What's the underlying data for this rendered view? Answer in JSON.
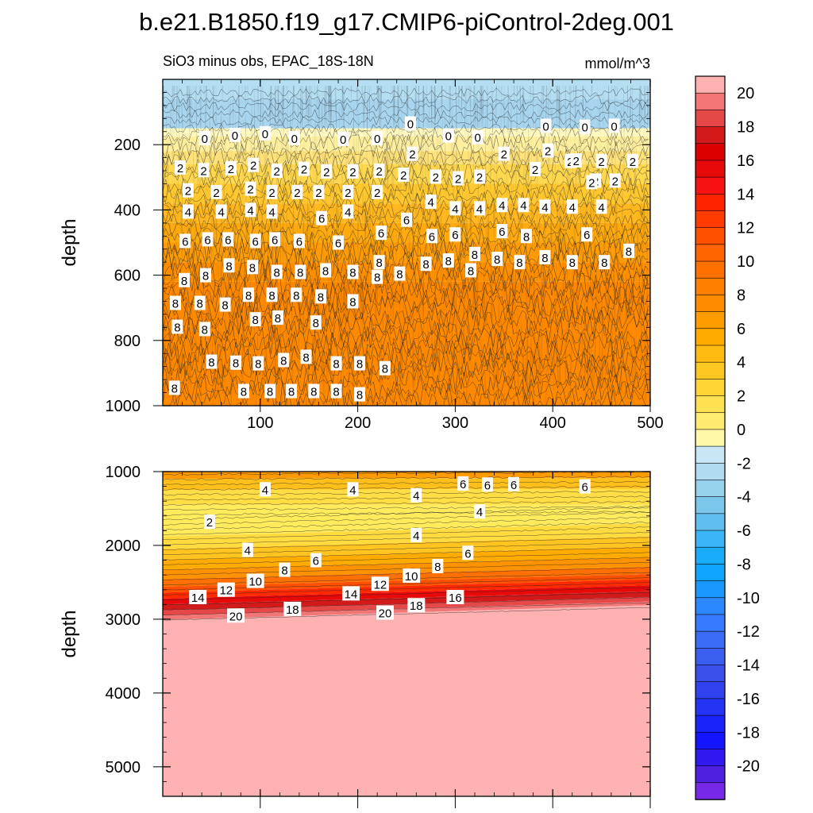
{
  "figure": {
    "title": "b.e21.B1850.f19_g17.CMIP6-piControl-2deg.001",
    "subtitle_left": "SiO3 minus obs, EPAC_18S-18N",
    "subtitle_right": "mmol/m^3"
  },
  "chart_data": [
    {
      "type": "heatmap",
      "name": "upper-panel",
      "ylabel": "depth",
      "xlim": [
        0,
        500
      ],
      "ylim": [
        0,
        1000
      ],
      "y_inverted": true,
      "x_ticks": [
        100,
        200,
        300,
        400,
        500
      ],
      "x_tick_labels": [
        "100",
        "200",
        "300",
        "400",
        "500"
      ],
      "y_ticks": [
        200,
        400,
        600,
        800,
        1000
      ],
      "y_tick_labels": [
        "200",
        "400",
        "600",
        "800",
        "1000"
      ],
      "contour_labels": [
        {
          "x": 43,
          "y": 180,
          "text": "0"
        },
        {
          "x": 74,
          "y": 170,
          "text": "0"
        },
        {
          "x": 105,
          "y": 165,
          "text": "0"
        },
        {
          "x": 135,
          "y": 180,
          "text": "0"
        },
        {
          "x": 185,
          "y": 182,
          "text": "0"
        },
        {
          "x": 220,
          "y": 180,
          "text": "0"
        },
        {
          "x": 254,
          "y": 135,
          "text": "0"
        },
        {
          "x": 293,
          "y": 172,
          "text": "0"
        },
        {
          "x": 323,
          "y": 177,
          "text": "0"
        },
        {
          "x": 393,
          "y": 142,
          "text": "0"
        },
        {
          "x": 433,
          "y": 145,
          "text": "0"
        },
        {
          "x": 463,
          "y": 142,
          "text": "0"
        },
        {
          "x": 18,
          "y": 270,
          "text": "2"
        },
        {
          "x": 42,
          "y": 278,
          "text": "2"
        },
        {
          "x": 70,
          "y": 272,
          "text": "2"
        },
        {
          "x": 93,
          "y": 262,
          "text": "2"
        },
        {
          "x": 117,
          "y": 280,
          "text": "2"
        },
        {
          "x": 145,
          "y": 274,
          "text": "2"
        },
        {
          "x": 168,
          "y": 282,
          "text": "2"
        },
        {
          "x": 195,
          "y": 282,
          "text": "2"
        },
        {
          "x": 222,
          "y": 280,
          "text": "2"
        },
        {
          "x": 247,
          "y": 292,
          "text": "2"
        },
        {
          "x": 256,
          "y": 228,
          "text": "2"
        },
        {
          "x": 280,
          "y": 298,
          "text": "2"
        },
        {
          "x": 303,
          "y": 303,
          "text": "2"
        },
        {
          "x": 325,
          "y": 298,
          "text": "2"
        },
        {
          "x": 350,
          "y": 228,
          "text": "2"
        },
        {
          "x": 382,
          "y": 275,
          "text": "2"
        },
        {
          "x": 395,
          "y": 218,
          "text": "2"
        },
        {
          "x": 418,
          "y": 250,
          "text": "2"
        },
        {
          "x": 424,
          "y": 248,
          "text": "2"
        },
        {
          "x": 444,
          "y": 310,
          "text": "2"
        },
        {
          "x": 450,
          "y": 250,
          "text": "2"
        },
        {
          "x": 464,
          "y": 310,
          "text": "2"
        },
        {
          "x": 482,
          "y": 250,
          "text": "2"
        },
        {
          "x": 440,
          "y": 315,
          "text": "2"
        },
        {
          "x": 26,
          "y": 340,
          "text": "2"
        },
        {
          "x": 55,
          "y": 345,
          "text": "2"
        },
        {
          "x": 90,
          "y": 335,
          "text": "2"
        },
        {
          "x": 112,
          "y": 345,
          "text": "2"
        },
        {
          "x": 138,
          "y": 345,
          "text": "2"
        },
        {
          "x": 160,
          "y": 345,
          "text": "2"
        },
        {
          "x": 190,
          "y": 345,
          "text": "2"
        },
        {
          "x": 220,
          "y": 345,
          "text": "2"
        },
        {
          "x": 26,
          "y": 405,
          "text": "4"
        },
        {
          "x": 60,
          "y": 405,
          "text": "4"
        },
        {
          "x": 90,
          "y": 400,
          "text": "4"
        },
        {
          "x": 112,
          "y": 405,
          "text": "4"
        },
        {
          "x": 163,
          "y": 425,
          "text": "6"
        },
        {
          "x": 190,
          "y": 405,
          "text": "4"
        },
        {
          "x": 275,
          "y": 375,
          "text": "4"
        },
        {
          "x": 300,
          "y": 395,
          "text": "4"
        },
        {
          "x": 325,
          "y": 395,
          "text": "4"
        },
        {
          "x": 348,
          "y": 385,
          "text": "4"
        },
        {
          "x": 370,
          "y": 385,
          "text": "4"
        },
        {
          "x": 392,
          "y": 390,
          "text": "4"
        },
        {
          "x": 420,
          "y": 390,
          "text": "4"
        },
        {
          "x": 450,
          "y": 390,
          "text": "4"
        },
        {
          "x": 23,
          "y": 495,
          "text": "6"
        },
        {
          "x": 46,
          "y": 490,
          "text": "6"
        },
        {
          "x": 67,
          "y": 490,
          "text": "6"
        },
        {
          "x": 95,
          "y": 495,
          "text": "6"
        },
        {
          "x": 115,
          "y": 490,
          "text": "6"
        },
        {
          "x": 140,
          "y": 495,
          "text": "6"
        },
        {
          "x": 180,
          "y": 500,
          "text": "6"
        },
        {
          "x": 224,
          "y": 470,
          "text": "6"
        },
        {
          "x": 250,
          "y": 430,
          "text": "6"
        },
        {
          "x": 276,
          "y": 480,
          "text": "6"
        },
        {
          "x": 300,
          "y": 475,
          "text": "6"
        },
        {
          "x": 348,
          "y": 465,
          "text": "6"
        },
        {
          "x": 373,
          "y": 480,
          "text": "8"
        },
        {
          "x": 435,
          "y": 475,
          "text": "6"
        },
        {
          "x": 478,
          "y": 525,
          "text": "8"
        },
        {
          "x": 22,
          "y": 615,
          "text": "8"
        },
        {
          "x": 44,
          "y": 600,
          "text": "8"
        },
        {
          "x": 68,
          "y": 570,
          "text": "8"
        },
        {
          "x": 92,
          "y": 575,
          "text": "8"
        },
        {
          "x": 117,
          "y": 590,
          "text": "8"
        },
        {
          "x": 141,
          "y": 590,
          "text": "8"
        },
        {
          "x": 167,
          "y": 585,
          "text": "8"
        },
        {
          "x": 195,
          "y": 590,
          "text": "8"
        },
        {
          "x": 220,
          "y": 605,
          "text": "8"
        },
        {
          "x": 222,
          "y": 560,
          "text": "8"
        },
        {
          "x": 243,
          "y": 595,
          "text": "8"
        },
        {
          "x": 270,
          "y": 565,
          "text": "8"
        },
        {
          "x": 293,
          "y": 555,
          "text": "8"
        },
        {
          "x": 316,
          "y": 585,
          "text": "8"
        },
        {
          "x": 320,
          "y": 535,
          "text": "8"
        },
        {
          "x": 343,
          "y": 550,
          "text": "8"
        },
        {
          "x": 366,
          "y": 560,
          "text": "8"
        },
        {
          "x": 392,
          "y": 545,
          "text": "8"
        },
        {
          "x": 420,
          "y": 560,
          "text": "8"
        },
        {
          "x": 453,
          "y": 560,
          "text": "8"
        },
        {
          "x": 13,
          "y": 685,
          "text": "8"
        },
        {
          "x": 38,
          "y": 685,
          "text": "8"
        },
        {
          "x": 64,
          "y": 690,
          "text": "8"
        },
        {
          "x": 88,
          "y": 660,
          "text": "8"
        },
        {
          "x": 112,
          "y": 660,
          "text": "8"
        },
        {
          "x": 137,
          "y": 660,
          "text": "8"
        },
        {
          "x": 162,
          "y": 665,
          "text": "8"
        },
        {
          "x": 195,
          "y": 680,
          "text": "8"
        },
        {
          "x": 15,
          "y": 758,
          "text": "8"
        },
        {
          "x": 43,
          "y": 765,
          "text": "8"
        },
        {
          "x": 95,
          "y": 735,
          "text": "8"
        },
        {
          "x": 118,
          "y": 730,
          "text": "8"
        },
        {
          "x": 157,
          "y": 745,
          "text": "8"
        },
        {
          "x": 50,
          "y": 865,
          "text": "8"
        },
        {
          "x": 75,
          "y": 868,
          "text": "8"
        },
        {
          "x": 98,
          "y": 870,
          "text": "8"
        },
        {
          "x": 124,
          "y": 860,
          "text": "8"
        },
        {
          "x": 147,
          "y": 850,
          "text": "8"
        },
        {
          "x": 178,
          "y": 870,
          "text": "8"
        },
        {
          "x": 202,
          "y": 870,
          "text": "8"
        },
        {
          "x": 228,
          "y": 885,
          "text": "8"
        },
        {
          "x": 12,
          "y": 945,
          "text": "8"
        },
        {
          "x": 83,
          "y": 955,
          "text": "8"
        },
        {
          "x": 110,
          "y": 955,
          "text": "8"
        },
        {
          "x": 132,
          "y": 955,
          "text": "8"
        },
        {
          "x": 155,
          "y": 955,
          "text": "8"
        },
        {
          "x": 178,
          "y": 955,
          "text": "8"
        },
        {
          "x": 202,
          "y": 965,
          "text": "8"
        }
      ]
    },
    {
      "type": "heatmap",
      "name": "lower-panel",
      "ylabel": "depth",
      "xlim": [
        0,
        500
      ],
      "ylim": [
        1000,
        5400
      ],
      "y_inverted": true,
      "x_ticks": [
        100,
        200,
        300,
        400,
        500
      ],
      "y_ticks": [
        1000,
        2000,
        3000,
        4000,
        5000
      ],
      "y_tick_labels": [
        "1000",
        "2000",
        "3000",
        "4000",
        "5000"
      ],
      "contour_labels": [
        {
          "x": 105,
          "y": 1240,
          "text": "4"
        },
        {
          "x": 195,
          "y": 1240,
          "text": "4"
        },
        {
          "x": 260,
          "y": 1320,
          "text": "4"
        },
        {
          "x": 308,
          "y": 1160,
          "text": "6"
        },
        {
          "x": 333,
          "y": 1175,
          "text": "6"
        },
        {
          "x": 360,
          "y": 1170,
          "text": "6"
        },
        {
          "x": 433,
          "y": 1200,
          "text": "6"
        },
        {
          "x": 325,
          "y": 1540,
          "text": "4"
        },
        {
          "x": 48,
          "y": 1680,
          "text": "2"
        },
        {
          "x": 260,
          "y": 1860,
          "text": "4"
        },
        {
          "x": 87,
          "y": 2060,
          "text": "4"
        },
        {
          "x": 157,
          "y": 2200,
          "text": "6"
        },
        {
          "x": 125,
          "y": 2330,
          "text": "8"
        },
        {
          "x": 282,
          "y": 2280,
          "text": "8"
        },
        {
          "x": 313,
          "y": 2100,
          "text": "6"
        },
        {
          "x": 95,
          "y": 2480,
          "text": "10"
        },
        {
          "x": 255,
          "y": 2410,
          "text": "10"
        },
        {
          "x": 65,
          "y": 2600,
          "text": "12"
        },
        {
          "x": 223,
          "y": 2520,
          "text": "12"
        },
        {
          "x": 36,
          "y": 2700,
          "text": "14"
        },
        {
          "x": 193,
          "y": 2650,
          "text": "14"
        },
        {
          "x": 300,
          "y": 2700,
          "text": "16"
        },
        {
          "x": 75,
          "y": 2950,
          "text": "20"
        },
        {
          "x": 133,
          "y": 2860,
          "text": "18"
        },
        {
          "x": 228,
          "y": 2910,
          "text": "20"
        },
        {
          "x": 260,
          "y": 2810,
          "text": "18"
        }
      ]
    },
    {
      "type": "colorbar",
      "name": "colorbar",
      "tick_labels": [
        "20",
        "18",
        "16",
        "14",
        "12",
        "10",
        "8",
        "6",
        "4",
        "2",
        "0",
        "-2",
        "-4",
        "-6",
        "-8",
        "-10",
        "-12",
        "-14",
        "-16",
        "-18",
        "-20"
      ],
      "levels": [
        21,
        20,
        19,
        18,
        17,
        16,
        15,
        14,
        13,
        12,
        11,
        10,
        9,
        8,
        7,
        6,
        5,
        4,
        3,
        2,
        1,
        0,
        -1,
        -2,
        -3,
        -4,
        -5,
        -6,
        -7,
        -8,
        -9,
        -10,
        -11,
        -12,
        -13,
        -14,
        -15,
        -16,
        -17,
        -18,
        -19,
        -20,
        -21
      ],
      "colors": [
        "#feb1b1",
        "#f37676",
        "#e64848",
        "#d21a1a",
        "#dc0000",
        "#e80a0a",
        "#f71111",
        "#ff2400",
        "#ff3c00",
        "#ff5000",
        "#ff6400",
        "#ff7000",
        "#ff8000",
        "#ff8c00",
        "#ff9c00",
        "#ffab00",
        "#ffbb10",
        "#ffc820",
        "#ffd535",
        "#ffe050",
        "#ffeb70",
        "#fff8a8",
        "#c8e6f5",
        "#afdcf0",
        "#96d2ee",
        "#7cc8ec",
        "#60bef0",
        "#3cb5f5",
        "#18acfa",
        "#0ea4ff",
        "#1a96ff",
        "#2c88ff",
        "#387aff",
        "#3a6cf8",
        "#3a5ef0",
        "#3a50ea",
        "#3042ee",
        "#2434f4",
        "#1a24fa",
        "#1414ff",
        "#3018f0",
        "#5020e0",
        "#7828e8"
      ]
    }
  ]
}
